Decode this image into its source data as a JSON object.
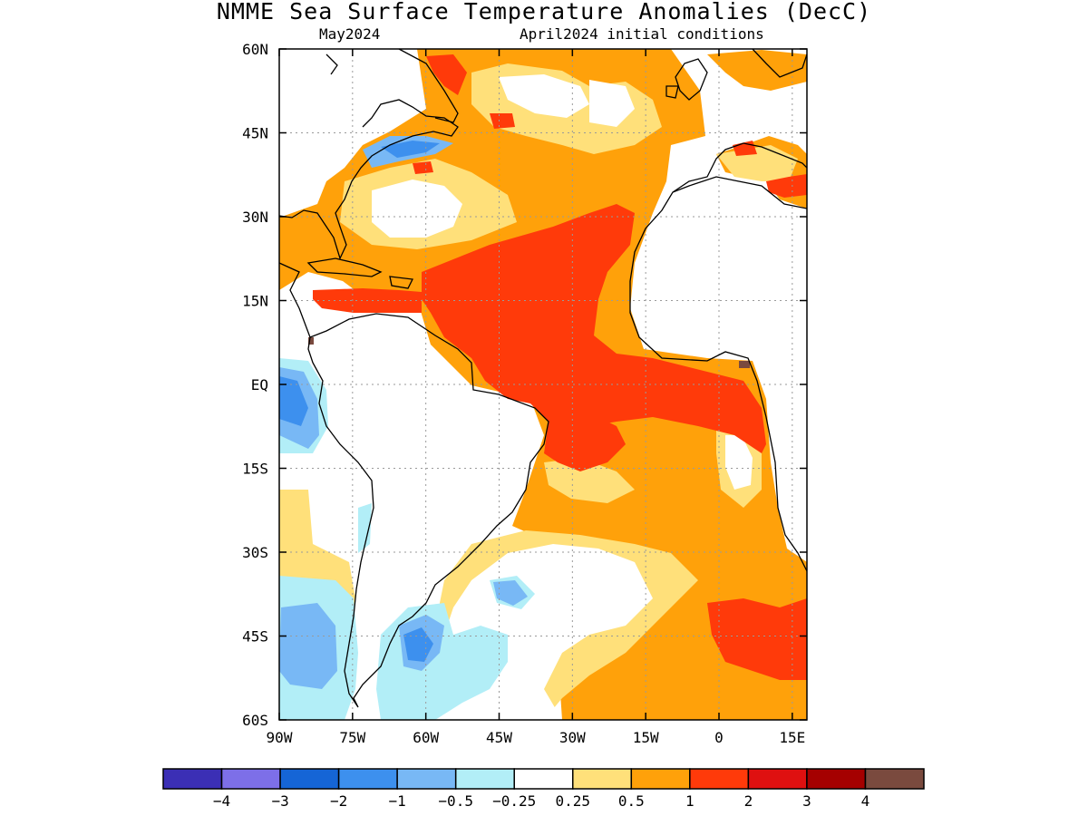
{
  "title": "NMME Sea Surface Temperature Anomalies (DecC)",
  "subtitle_left": "May2024",
  "subtitle_right": "April2024 initial conditions",
  "map": {
    "lon_range": [
      -90,
      18
    ],
    "lat_range": [
      -60,
      60
    ],
    "grid": true,
    "y_ticks": [
      {
        "value": 60,
        "label": "60N"
      },
      {
        "value": 45,
        "label": "45N"
      },
      {
        "value": 30,
        "label": "30N"
      },
      {
        "value": 15,
        "label": "15N"
      },
      {
        "value": 0,
        "label": "EQ"
      },
      {
        "value": -15,
        "label": "15S"
      },
      {
        "value": -30,
        "label": "30S"
      },
      {
        "value": -45,
        "label": "45S"
      },
      {
        "value": -60,
        "label": "60S"
      }
    ],
    "x_ticks": [
      {
        "value": -90,
        "label": "90W"
      },
      {
        "value": -75,
        "label": "75W"
      },
      {
        "value": -60,
        "label": "60W"
      },
      {
        "value": -45,
        "label": "45W"
      },
      {
        "value": -30,
        "label": "30W"
      },
      {
        "value": -15,
        "label": "15W"
      },
      {
        "value": 0,
        "label": "0"
      },
      {
        "value": 15,
        "label": "15E"
      }
    ]
  },
  "colorbar": {
    "colors": [
      "#3b2fb5",
      "#7d6fe8",
      "#1565d6",
      "#3d90ee",
      "#78b8f5",
      "#b2eef7",
      "#ffffff",
      "#ffe07a",
      "#ffa10a",
      "#ff3a0a",
      "#df1010",
      "#a50000",
      "#7a4a3e"
    ],
    "labels": [
      "−4",
      "−3",
      "−2",
      "−1",
      "−0.5",
      "−0.25",
      "0.25",
      "0.5",
      "1",
      "2",
      "3",
      "4"
    ]
  }
}
